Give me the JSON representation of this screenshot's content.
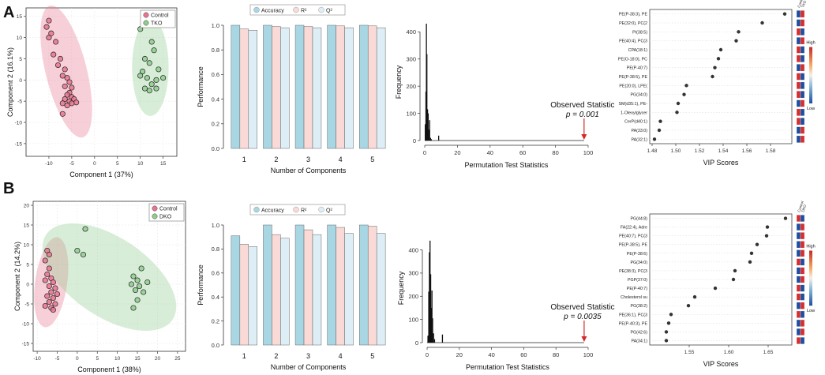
{
  "panel_labels": [
    "A",
    "B"
  ],
  "chart_data": [
    {
      "id": "A_pls",
      "type": "scatter",
      "xlabel": "Component 1 (37%)",
      "ylabel": "Component 2 (16.1%)",
      "xlim": [
        -15,
        18
      ],
      "ylim": [
        -18,
        17
      ],
      "xticks": [
        "-10",
        "-5",
        "0",
        "5",
        "10",
        "15"
      ],
      "xtick_values": [
        -10,
        -5,
        0,
        5,
        10,
        15
      ],
      "yticks": [
        "-15",
        "-10",
        "-5",
        "0",
        "5",
        "10",
        "15"
      ],
      "ytick_values": [
        -15,
        -10,
        -5,
        0,
        5,
        10,
        15
      ],
      "legend": [
        "Control",
        "TKO"
      ],
      "colors": [
        "#e8758f",
        "#8fcc8f"
      ],
      "series": [
        {
          "name": "Control",
          "points": [
            [
              -10,
              14
            ],
            [
              -10.5,
              12.5
            ],
            [
              -9.5,
              11
            ],
            [
              -10,
              10
            ],
            [
              -8.5,
              9
            ],
            [
              -9,
              6
            ],
            [
              -7.5,
              5
            ],
            [
              -8,
              3.5
            ],
            [
              -6.5,
              2.5
            ],
            [
              -7,
              1
            ],
            [
              -6,
              0.5
            ],
            [
              -5.5,
              -0.5
            ],
            [
              -6.5,
              -1.5
            ],
            [
              -5,
              -1.8
            ],
            [
              -5.5,
              -3
            ],
            [
              -6,
              -3.5
            ],
            [
              -5,
              -4
            ],
            [
              -4.5,
              -4.5
            ],
            [
              -6.5,
              -4.5
            ],
            [
              -5.5,
              -5
            ],
            [
              -4,
              -5.3
            ],
            [
              -7,
              -5.5
            ],
            [
              -5,
              -5.5
            ],
            [
              -6,
              -6
            ],
            [
              -7,
              -8
            ]
          ],
          "ellipse": {
            "cx": -6.2,
            "cy": 2,
            "rx": 4.5,
            "ry": 16,
            "angle": -14
          }
        },
        {
          "name": "TKO",
          "points": [
            [
              10,
              12
            ],
            [
              12.5,
              9
            ],
            [
              13,
              7
            ],
            [
              11,
              5
            ],
            [
              12,
              4
            ],
            [
              10.5,
              2
            ],
            [
              14,
              2.5
            ],
            [
              10,
              1
            ],
            [
              11.5,
              0.5
            ],
            [
              13.5,
              0
            ],
            [
              15,
              0.5
            ],
            [
              12.5,
              -1
            ],
            [
              11,
              -2
            ],
            [
              12,
              -2.5
            ],
            [
              13.5,
              -2
            ]
          ],
          "ellipse": {
            "cx": 12.2,
            "cy": 3,
            "rx": 4,
            "ry": 11.5,
            "angle": 0
          }
        }
      ]
    },
    {
      "id": "A_perf",
      "type": "bar",
      "xlabel": "Number of Components",
      "ylabel": "Performance",
      "ylim": [
        0,
        1.0
      ],
      "yticks": [
        "0.0",
        "0.2",
        "0.4",
        "0.6",
        "0.8",
        "1.0"
      ],
      "ytick_values": [
        0,
        0.2,
        0.4,
        0.6,
        0.8,
        1.0
      ],
      "categories": [
        "1",
        "2",
        "3",
        "4",
        "5"
      ],
      "legend": [
        "Accuracy",
        "R²",
        "Q²"
      ],
      "colors": [
        "#a9d6e3",
        "#f9dad6",
        "#ddeef6"
      ],
      "series": [
        {
          "name": "Accuracy",
          "values": [
            1.0,
            1.0,
            1.0,
            1.0,
            1.0
          ]
        },
        {
          "name": "R²",
          "values": [
            0.97,
            0.99,
            0.99,
            0.995,
            0.995
          ]
        },
        {
          "name": "Q²",
          "values": [
            0.96,
            0.98,
            0.98,
            0.98,
            0.98
          ]
        }
      ]
    },
    {
      "id": "A_perm",
      "type": "bar",
      "xlabel": "Permutation Test Statistics",
      "ylabel": "Frequency",
      "xlim": [
        0,
        100
      ],
      "ylim": [
        0,
        430
      ],
      "xticks": [
        "0",
        "20",
        "40",
        "60",
        "80",
        "100"
      ],
      "xtick_values": [
        0,
        20,
        40,
        60,
        80,
        100
      ],
      "yticks": [
        "0",
        "100",
        "200",
        "300",
        "400"
      ],
      "ytick_values": [
        0,
        100,
        200,
        300,
        400
      ],
      "histogram": [
        [
          0.3,
          60
        ],
        [
          0.7,
          180
        ],
        [
          1.0,
          430
        ],
        [
          1.3,
          318
        ],
        [
          1.7,
          115
        ],
        [
          2.1,
          100
        ],
        [
          2.5,
          40
        ],
        [
          3.0,
          75
        ],
        [
          3.5,
          10
        ],
        [
          4.0,
          5
        ],
        [
          8.5,
          18
        ]
      ],
      "observed": {
        "label": "Observed Statistic",
        "p_label": "p = 0.001",
        "x": 97.5
      }
    },
    {
      "id": "A_vip",
      "type": "scatter",
      "xlabel": "VIP Scores",
      "xlim": [
        1.478,
        1.598
      ],
      "xticks": [
        "1.48",
        "1.50",
        "1.52",
        "1.54",
        "1.56",
        "1.58"
      ],
      "xtick_values": [
        1.48,
        1.5,
        1.52,
        1.54,
        1.56,
        1.58
      ],
      "categories": [
        "PE(P-38:3), PE",
        "PE(32:0), PC(2",
        "PI(38:5)",
        "PE(40:4), PC(3",
        "CPA(18:1)",
        "PE(O-18:0), PC",
        "PE(P-40:7)",
        "PE(P-38:5), PE",
        "PE(20:0), LPE(",
        "PG(34:0)",
        "SM(d35:1), PE-",
        "1-Oleoylglycer",
        "CerP(d40:1)",
        "PA(33:0)",
        "PA(32:1)"
      ],
      "values": [
        1.592,
        1.573,
        1.553,
        1.551,
        1.538,
        1.536,
        1.533,
        1.531,
        1.509,
        1.507,
        1.502,
        1.501,
        1.487,
        1.486,
        1.482
      ],
      "heat_header": [
        "Control",
        "TKO"
      ],
      "heat_low_high": [
        "blue",
        "red",
        "blue",
        "red",
        "red",
        "blue",
        "blue",
        "red",
        "red",
        "blue",
        "red",
        "blue",
        "blue",
        "red",
        "red",
        "blue",
        "red",
        "blue",
        "red",
        "blue",
        "blue",
        "red",
        "red",
        "blue",
        "red",
        "blue",
        "blue",
        "red",
        "blue",
        "red"
      ],
      "colorbar": {
        "high": "High",
        "low": "Low"
      }
    },
    {
      "id": "B_pls",
      "type": "scatter",
      "xlabel": "Component 1 (38%)",
      "ylabel": "Component 2 (14.2%)",
      "xlim": [
        -11,
        27
      ],
      "ylim": [
        -17,
        21
      ],
      "xticks": [
        "-10",
        "-5",
        "0",
        "5",
        "10",
        "15",
        "20",
        "25"
      ],
      "xtick_values": [
        -10,
        -5,
        0,
        5,
        10,
        15,
        20,
        25
      ],
      "yticks": [
        "-15",
        "-10",
        "-5",
        "0",
        "5",
        "10",
        "15",
        "20"
      ],
      "ytick_values": [
        -15,
        -10,
        -5,
        0,
        5,
        10,
        15,
        20
      ],
      "legend": [
        "Control",
        "DKO"
      ],
      "colors": [
        "#e8758f",
        "#8fcc8f"
      ],
      "series": [
        {
          "name": "Control",
          "points": [
            [
              -7.5,
              8.5
            ],
            [
              -7,
              7.5
            ],
            [
              -8,
              6
            ],
            [
              -7,
              4
            ],
            [
              -7.5,
              2.5
            ],
            [
              -6.5,
              1.5
            ],
            [
              -8,
              1
            ],
            [
              -6,
              0.5
            ],
            [
              -7,
              -0.5
            ],
            [
              -5.5,
              -1
            ],
            [
              -6.5,
              -2
            ],
            [
              -5,
              -2.5
            ],
            [
              -7.5,
              -3
            ],
            [
              -6,
              -3.5
            ],
            [
              -7,
              -4.5
            ],
            [
              -5.5,
              -5
            ],
            [
              -8,
              -5.5
            ],
            [
              -6.5,
              -6
            ],
            [
              -6,
              -6.5
            ]
          ],
          "ellipse": {
            "cx": -6.5,
            "cy": 0.5,
            "rx": 4,
            "ry": 11.5,
            "angle": 8
          }
        },
        {
          "name": "DKO",
          "points": [
            [
              2,
              14
            ],
            [
              0,
              8.5
            ],
            [
              1.5,
              7.5
            ],
            [
              16,
              4
            ],
            [
              14,
              2
            ],
            [
              15,
              1
            ],
            [
              17.5,
              0.5
            ],
            [
              13.5,
              0
            ],
            [
              15.5,
              -0.5
            ],
            [
              14.5,
              -1.5
            ],
            [
              16.5,
              -2
            ],
            [
              15,
              -4
            ],
            [
              14,
              -6
            ]
          ],
          "ellipse": {
            "cx": 8,
            "cy": 1.8,
            "rx": 19,
            "ry": 10,
            "angle": 34
          }
        }
      ]
    },
    {
      "id": "B_perf",
      "type": "bar",
      "xlabel": "Number of Components",
      "ylabel": "Performance",
      "ylim": [
        0,
        1.0
      ],
      "yticks": [
        "0.0",
        "0.2",
        "0.4",
        "0.6",
        "0.8",
        "1.0"
      ],
      "ytick_values": [
        0,
        0.2,
        0.4,
        0.6,
        0.8,
        1.0
      ],
      "categories": [
        "1",
        "2",
        "3",
        "4",
        "5"
      ],
      "legend": [
        "Accuracy",
        "R²",
        "Q²"
      ],
      "colors": [
        "#a9d6e3",
        "#f9dad6",
        "#ddeef6"
      ],
      "series": [
        {
          "name": "Accuracy",
          "values": [
            0.91,
            1.0,
            1.0,
            1.0,
            1.0
          ]
        },
        {
          "name": "R²",
          "values": [
            0.84,
            0.92,
            0.96,
            0.98,
            0.99
          ]
        },
        {
          "name": "Q²",
          "values": [
            0.82,
            0.89,
            0.92,
            0.93,
            0.93
          ]
        }
      ]
    },
    {
      "id": "B_perm",
      "type": "bar",
      "xlabel": "Permutation Test Statistics",
      "ylabel": "Frequency",
      "xlim": [
        0,
        100
      ],
      "ylim": [
        0,
        470
      ],
      "xticks": [
        "0",
        "20",
        "40",
        "60",
        "80",
        "100"
      ],
      "xtick_values": [
        0,
        20,
        40,
        60,
        80,
        100
      ],
      "yticks": [
        "0",
        "100",
        "200",
        "300",
        "400"
      ],
      "ytick_values": [
        0,
        100,
        200,
        300,
        400
      ],
      "histogram": [
        [
          0.5,
          30
        ],
        [
          1.0,
          220
        ],
        [
          1.4,
          390
        ],
        [
          1.8,
          440
        ],
        [
          2.2,
          295
        ],
        [
          2.6,
          150
        ],
        [
          3.0,
          225
        ],
        [
          3.4,
          105
        ],
        [
          4.0,
          40
        ],
        [
          4.6,
          15
        ],
        [
          9.5,
          35
        ]
      ],
      "observed": {
        "label": "Observed Statistic",
        "p_label": "p = 0.0035",
        "x": 97.5
      }
    },
    {
      "id": "B_vip",
      "type": "scatter",
      "xlabel": "VIP Scores",
      "xlim": [
        1.5,
        1.68
      ],
      "xticks": [
        "1.55",
        "1.60",
        "1.65"
      ],
      "xtick_values": [
        1.55,
        1.6,
        1.65
      ],
      "categories": [
        "PG(44:8)",
        "FA(22:4), Adre",
        "PE(40:7), PC(3",
        "PE(P-38:5), PE",
        "PE(P-38:6)",
        "PG(34:0)",
        "PE(38:3), PC(3",
        "PGP(37:0)",
        "PE(P-40:7)",
        "Cholesterol su",
        "PG(38:2)",
        "PE(36:1), PC(3",
        "PE(P-40:3), PE",
        "PG(42:6)",
        "PA(34:1)"
      ],
      "values": [
        1.672,
        1.649,
        1.648,
        1.636,
        1.629,
        1.627,
        1.608,
        1.606,
        1.583,
        1.557,
        1.549,
        1.527,
        1.524,
        1.521,
        1.521
      ],
      "heat_header": [
        "Control",
        "DKO"
      ],
      "heat_low_high": [
        "red",
        "blue",
        "blue",
        "red",
        "blue",
        "red",
        "blue",
        "red",
        "blue",
        "red",
        "red",
        "blue",
        "blue",
        "red",
        "blue",
        "red",
        "red",
        "blue",
        "red",
        "blue",
        "blue",
        "red",
        "red",
        "blue",
        "blue",
        "red",
        "blue",
        "red",
        "red",
        "blue"
      ],
      "colorbar": {
        "high": "High",
        "low": "Low"
      }
    }
  ]
}
